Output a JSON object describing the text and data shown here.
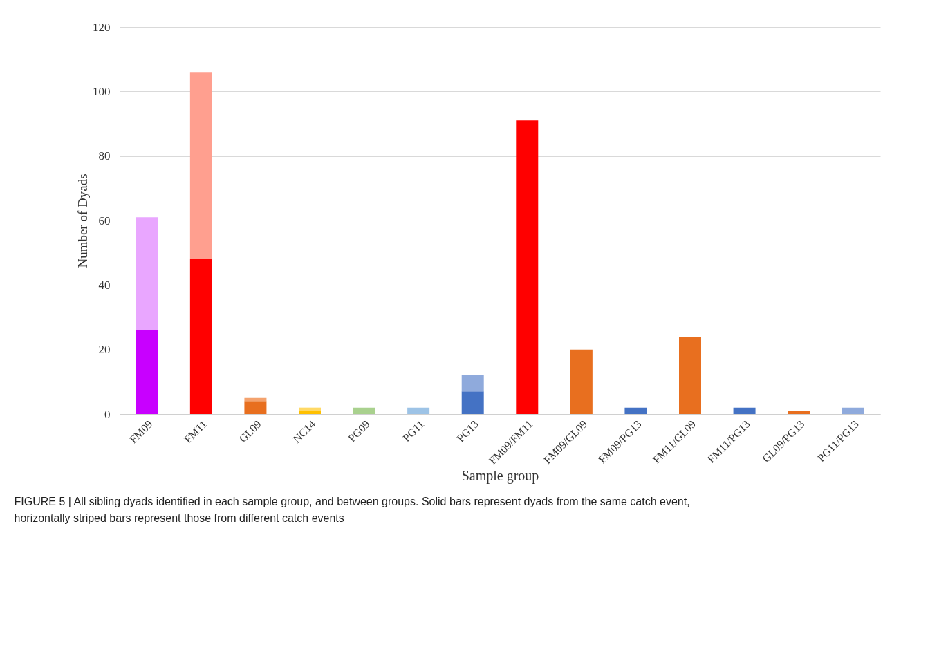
{
  "chart_data": {
    "type": "bar",
    "stacked": true,
    "xlabel": "Sample group",
    "ylabel": "Number of Dyads",
    "categories": [
      "FM09",
      "FM11",
      "GL09",
      "NC14",
      "PG09",
      "PG11",
      "PG13",
      "FM09/FM11",
      "FM09/GL09",
      "FM09/PG13",
      "FM11/GL09",
      "FM11/PG13",
      "GL09/PG13",
      "PG11/PG13"
    ],
    "series": [
      {
        "values": [
          26,
          48,
          4,
          1,
          null,
          2,
          7,
          null,
          null,
          null,
          null,
          null,
          null,
          null
        ],
        "colors": [
          "#c800ff",
          "#ff0000",
          "#e86f1f",
          "#ffc000",
          "#70ad47",
          "#9dc3e6",
          "#4472c4",
          "#c800ff",
          "#c800ff",
          "#c800ff",
          "#ff0000",
          "#ff0000",
          "#4472c4",
          "#4472c4"
        ]
      },
      {
        "values": [
          35,
          58,
          1,
          1,
          2,
          null,
          5,
          91,
          20,
          2,
          24,
          2,
          1,
          2
        ],
        "colors": [
          "#e9a6ff",
          "#ff9f8f",
          "#f4a26e",
          "#ffd966",
          "#a9d18e",
          "#9dc3e6",
          "#8faadc",
          "#ff0000",
          "#e86f1f",
          "#4472c4",
          "#e86f1f",
          "#4472c4",
          "#e86f1f",
          "#8faadc"
        ]
      }
    ],
    "ylim": [
      0,
      120
    ],
    "yticks": [
      0,
      20,
      40,
      60,
      80,
      100,
      120
    ],
    "grid": "y",
    "annotations": [
      "FIGURE 5 | All sibling dyads identified in each sample group, and between groups. Solid bars represent dyads from the same catch event, horizontally striped bars represent those from different catch events"
    ]
  }
}
